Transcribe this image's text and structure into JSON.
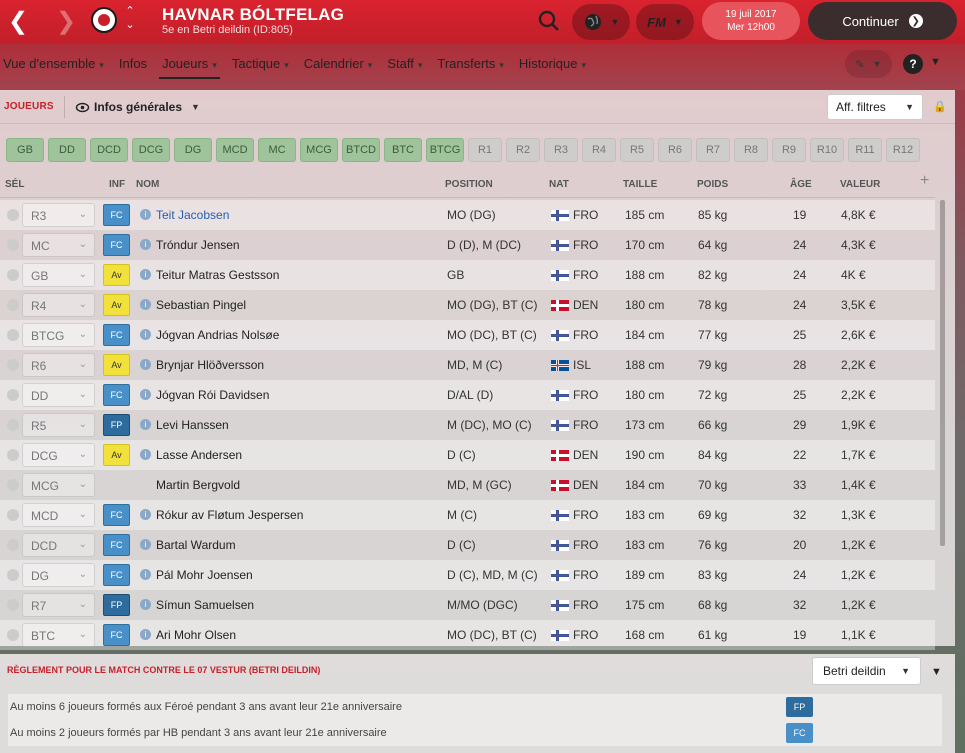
{
  "header": {
    "club_name": "HAVNAR BÓLTFELAG",
    "club_sub": "5e en Betri deildin (ID:805)",
    "date_line1": "19 juil 2017",
    "date_line2": "Mer 12h00",
    "continue_label": "Continuer",
    "fm_label": "FM"
  },
  "menu": [
    {
      "label": "Vue d'ensemble",
      "has_chev": true
    },
    {
      "label": "Infos",
      "has_chev": false
    },
    {
      "label": "Joueurs",
      "has_chev": true,
      "selected": true
    },
    {
      "label": "Tactique",
      "has_chev": true
    },
    {
      "label": "Calendrier",
      "has_chev": true
    },
    {
      "label": "Staff",
      "has_chev": true
    },
    {
      "label": "Transferts",
      "has_chev": true
    },
    {
      "label": "Historique",
      "has_chev": true
    }
  ],
  "toolbar": {
    "section": "JOUEURS",
    "view_label": "Infos générales",
    "filter_label": "Aff. filtres"
  },
  "position_pills": [
    {
      "label": "GB",
      "on": true
    },
    {
      "label": "DD",
      "on": true
    },
    {
      "label": "DCD",
      "on": true
    },
    {
      "label": "DCG",
      "on": true
    },
    {
      "label": "DG",
      "on": true
    },
    {
      "label": "MCD",
      "on": true
    },
    {
      "label": "MC",
      "on": true
    },
    {
      "label": "MCG",
      "on": true
    },
    {
      "label": "BTCD",
      "on": true
    },
    {
      "label": "BTC",
      "on": true
    },
    {
      "label": "BTCG",
      "on": true
    },
    {
      "label": "R1",
      "on": false
    },
    {
      "label": "R2",
      "on": false
    },
    {
      "label": "R3",
      "on": false
    },
    {
      "label": "R4",
      "on": false
    },
    {
      "label": "R5",
      "on": false
    },
    {
      "label": "R6",
      "on": false
    },
    {
      "label": "R7",
      "on": false
    },
    {
      "label": "R8",
      "on": false
    },
    {
      "label": "R9",
      "on": false
    },
    {
      "label": "R10",
      "on": false
    },
    {
      "label": "R11",
      "on": false
    },
    {
      "label": "R12",
      "on": false
    }
  ],
  "columns": {
    "sel": "SÉL",
    "inf": "INF",
    "nom": "NOM",
    "position": "POSITION",
    "nat": "NAT",
    "taille": "TAILLE",
    "poids": "POIDS",
    "age": "ÂGE",
    "valeur": "VALEUR"
  },
  "players": [
    {
      "slot": "R3",
      "inf": "FC",
      "name": "Teit Jacobsen",
      "position": "MO (DG)",
      "nat": "FRO",
      "taille": "185 cm",
      "poids": "85 kg",
      "age": "19",
      "valeur": "4,8K €",
      "link": true
    },
    {
      "slot": "MC",
      "inf": "FC",
      "name": "Tróndur Jensen",
      "position": "D (D), M (DC)",
      "nat": "FRO",
      "taille": "170 cm",
      "poids": "64 kg",
      "age": "24",
      "valeur": "4,3K €"
    },
    {
      "slot": "GB",
      "inf": "Av",
      "name": "Teitur Matras Gestsson",
      "position": "GB",
      "nat": "FRO",
      "taille": "188 cm",
      "poids": "82 kg",
      "age": "24",
      "valeur": "4K €"
    },
    {
      "slot": "R4",
      "inf": "Av",
      "name": "Sebastian Pingel",
      "position": "MO (DG), BT (C)",
      "nat": "DEN",
      "taille": "180 cm",
      "poids": "78 kg",
      "age": "24",
      "valeur": "3,5K €"
    },
    {
      "slot": "BTCG",
      "inf": "FC",
      "name": "Jógvan Andrias Nolsøe",
      "position": "MO (DC), BT (C)",
      "nat": "FRO",
      "taille": "184 cm",
      "poids": "77 kg",
      "age": "25",
      "valeur": "2,6K €"
    },
    {
      "slot": "R6",
      "inf": "Av",
      "name": "Brynjar Hlöðversson",
      "position": "MD, M (C)",
      "nat": "ISL",
      "taille": "188 cm",
      "poids": "79 kg",
      "age": "28",
      "valeur": "2,2K €"
    },
    {
      "slot": "DD",
      "inf": "FC",
      "name": "Jógvan Rói Davidsen",
      "position": "D/AL (D)",
      "nat": "FRO",
      "taille": "180 cm",
      "poids": "72 kg",
      "age": "25",
      "valeur": "2,2K €"
    },
    {
      "slot": "R5",
      "inf": "FP",
      "name": "Levi Hanssen",
      "position": "M (DC), MO (C)",
      "nat": "FRO",
      "taille": "173 cm",
      "poids": "66 kg",
      "age": "29",
      "valeur": "1,9K €"
    },
    {
      "slot": "DCG",
      "inf": "Av",
      "name": "Lasse Andersen",
      "position": "D (C)",
      "nat": "DEN",
      "taille": "190 cm",
      "poids": "84 kg",
      "age": "22",
      "valeur": "1,7K €"
    },
    {
      "slot": "MCG",
      "inf": "",
      "name": "Martin Bergvold",
      "position": "MD, M (GC)",
      "nat": "DEN",
      "taille": "184 cm",
      "poids": "70 kg",
      "age": "33",
      "valeur": "1,4K €"
    },
    {
      "slot": "MCD",
      "inf": "FC",
      "name": "Rókur av Fløtum Jespersen",
      "position": "M (C)",
      "nat": "FRO",
      "taille": "183 cm",
      "poids": "69 kg",
      "age": "32",
      "valeur": "1,3K €"
    },
    {
      "slot": "DCD",
      "inf": "FC",
      "name": "Bartal Wardum",
      "position": "D (C)",
      "nat": "FRO",
      "taille": "183 cm",
      "poids": "76 kg",
      "age": "20",
      "valeur": "1,2K €"
    },
    {
      "slot": "DG",
      "inf": "FC",
      "name": "Pál Mohr Joensen",
      "position": "D (C), MD, M (C)",
      "nat": "FRO",
      "taille": "189 cm",
      "poids": "83 kg",
      "age": "24",
      "valeur": "1,2K €"
    },
    {
      "slot": "R7",
      "inf": "FP",
      "name": "Símun Samuelsen",
      "position": "M/MO (DGC)",
      "nat": "FRO",
      "taille": "175 cm",
      "poids": "68 kg",
      "age": "32",
      "valeur": "1,2K €"
    },
    {
      "slot": "BTC",
      "inf": "FC",
      "name": "Ari Mohr Olsen",
      "position": "MO (DC), BT (C)",
      "nat": "FRO",
      "taille": "168 cm",
      "poids": "61 kg",
      "age": "19",
      "valeur": "1,1K €"
    }
  ],
  "flag_colors": {
    "FRO": {
      "field": "#ffffff",
      "cross": "#2c5aa0",
      "inner": "#d62828"
    },
    "DEN": {
      "field": "#c8102e",
      "cross": "#ffffff",
      "inner": "#ffffff"
    },
    "ISL": {
      "field": "#02529c",
      "cross": "#ffffff",
      "inner": "#dc1e35"
    }
  },
  "rules": {
    "title": "RÈGLEMENT POUR LE MATCH CONTRE LE 07 VESTUR (BETRI DEILDIN)",
    "competition": "Betri deildin",
    "items": [
      {
        "text": "Au moins 6 joueurs formés aux Féroé pendant 3 ans avant leur 21e anniversaire",
        "badge": "FP"
      },
      {
        "text": "Au moins 2 joueurs formés par HB pendant 3 ans avant leur 21e anniversaire",
        "badge": "FC"
      }
    ]
  }
}
